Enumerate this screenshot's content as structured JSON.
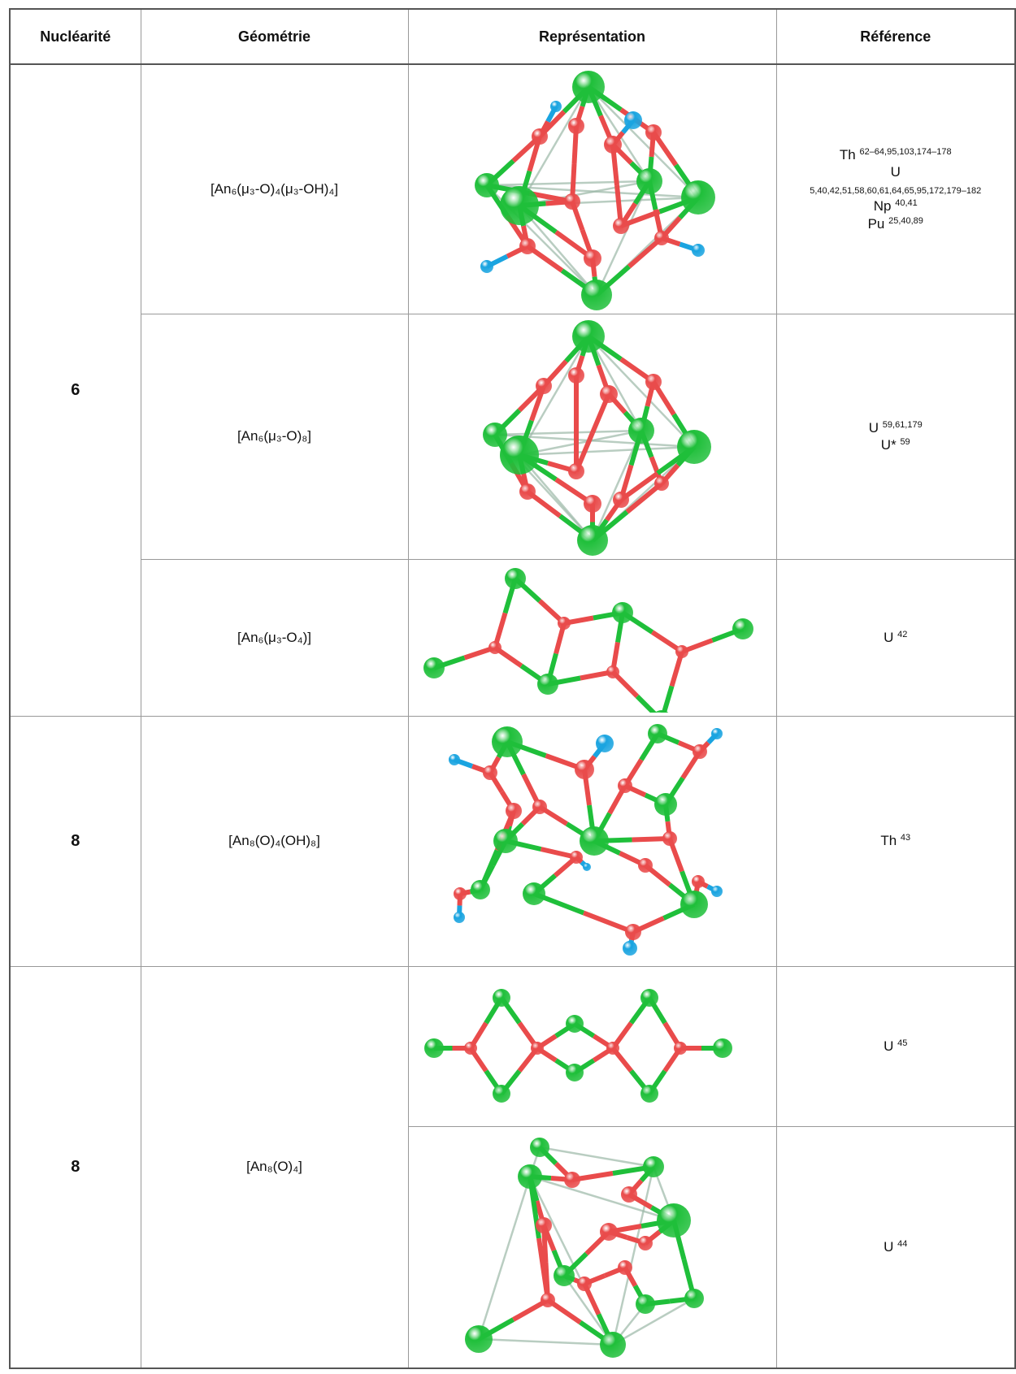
{
  "table": {
    "headers": [
      "Nucléarité",
      "Géométrie",
      "Représentation",
      "Référence"
    ],
    "groups": [
      {
        "nuclearity": "6",
        "rows": [
          {
            "geometry": "[An₆(μ₃-O)₄(μ₃-OH)₄]",
            "references": [
              {
                "element": "Th",
                "refs": "62–64,95,103,174–178"
              },
              {
                "element": "U",
                "refs": "5,40,42,51,58,60,61,64,65,95,172,179–182"
              },
              {
                "element": "Np",
                "refs": "40,41"
              },
              {
                "element": "Pu",
                "refs": "25,40,89"
              }
            ]
          },
          {
            "geometry": "[An₆(μ₃-O)₈]",
            "references": [
              {
                "element": "U",
                "refs": "59,61,179"
              },
              {
                "element": "U*",
                "refs": "59"
              }
            ]
          },
          {
            "geometry": "[An₆(μ₃-O₄)]",
            "references": [
              {
                "element": "U",
                "refs": "42"
              }
            ]
          }
        ]
      },
      {
        "nuclearity": "8",
        "rows": [
          {
            "geometry": "[An₈(O)₄(OH)₈]",
            "references": [
              {
                "element": "Th",
                "refs": "43"
              }
            ]
          }
        ]
      },
      {
        "nuclearity": "8",
        "geometry": "[An₈(O)₄]",
        "rows": [
          {
            "references": [
              {
                "element": "U",
                "refs": "45"
              }
            ]
          },
          {
            "references": [
              {
                "element": "U",
                "refs": "44"
              }
            ]
          }
        ]
      }
    ]
  }
}
